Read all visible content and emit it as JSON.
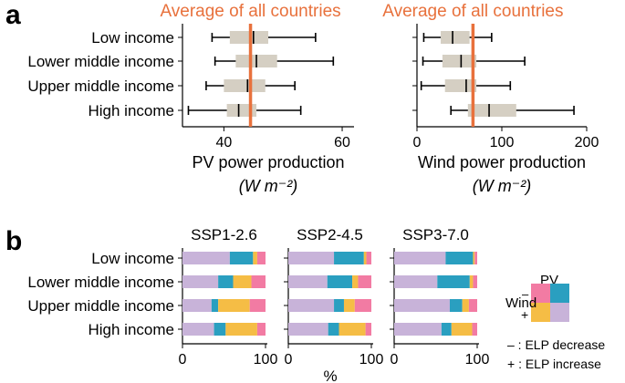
{
  "panel_a": {
    "label": "a",
    "annotation": "Average of all countries",
    "categories": [
      "Low income",
      "Lower middle income",
      "Upper middle income",
      "High income"
    ],
    "colors": {
      "box": "#d5cfc3",
      "average": "#e8713c"
    }
  },
  "panel_b": {
    "label": "b",
    "categories": [
      "Low income",
      "Lower middle income",
      "Upper middle income",
      "High income"
    ],
    "xlabel": "%",
    "legend": {
      "pv_title": "PV",
      "pv_minus": "–",
      "pv_plus": "+",
      "wind_title": "Wind",
      "wind_minus": "–",
      "wind_plus": "+",
      "note_minus": "– : ELP decrease",
      "note_plus": "+ : ELP increase"
    },
    "colors": {
      "pv_minus_wind_minus": "#f27ba3",
      "pv_plus_wind_minus": "#2a9fc0",
      "pv_minus_wind_plus": "#f5bd45",
      "pv_plus_wind_plus": "#c8b3d9"
    }
  },
  "chart_data": [
    {
      "type": "box",
      "title": "",
      "annotation": "Average of all countries",
      "xlabel": "PV power production",
      "xunit": "(W m⁻²)",
      "xlim": [
        33,
        62
      ],
      "xticks": [
        40,
        60
      ],
      "categories": [
        "Low income",
        "Lower middle income",
        "Upper middle income",
        "High income"
      ],
      "boxes": [
        {
          "whislo": 38,
          "q1": 41,
          "med": 45,
          "q3": 47.5,
          "whishi": 55.5
        },
        {
          "whislo": 38.5,
          "q1": 42,
          "med": 45.5,
          "q3": 49,
          "whishi": 58.5
        },
        {
          "whislo": 37,
          "q1": 40,
          "med": 44,
          "q3": 47,
          "whishi": 52
        },
        {
          "whislo": 34,
          "q1": 40.5,
          "med": 42.5,
          "q3": 45.5,
          "whishi": 53
        }
      ],
      "average": 44.5
    },
    {
      "type": "box",
      "title": "",
      "annotation": "Average of all countries",
      "xlabel": "Wind power production",
      "xunit": "(W m⁻²)",
      "xlim": [
        0,
        200
      ],
      "xticks": [
        0,
        100,
        200
      ],
      "categories": [
        "Low income",
        "Lower middle income",
        "Upper middle income",
        "High income"
      ],
      "boxes": [
        {
          "whislo": 8,
          "q1": 28,
          "med": 42,
          "q3": 62,
          "whishi": 88
        },
        {
          "whislo": 7,
          "q1": 30,
          "med": 52,
          "q3": 70,
          "whishi": 127
        },
        {
          "whislo": 5,
          "q1": 33,
          "med": 58,
          "q3": 70,
          "whishi": 110
        },
        {
          "whislo": 40,
          "q1": 60,
          "med": 85,
          "q3": 117,
          "whishi": 185
        }
      ],
      "average": 66
    },
    {
      "type": "bar",
      "stacked": true,
      "orientation": "horizontal",
      "title": "SSP1-2.6",
      "xlim": [
        0,
        100
      ],
      "xticks": [
        0,
        100
      ],
      "categories": [
        "Low income",
        "Lower middle income",
        "Upper middle income",
        "High income"
      ],
      "series": [
        {
          "key": "pv_plus_wind_plus",
          "values": [
            57,
            43,
            35,
            38
          ]
        },
        {
          "key": "pv_plus_wind_minus",
          "values": [
            28,
            18,
            8,
            14
          ]
        },
        {
          "key": "pv_minus_wind_plus",
          "values": [
            5,
            22,
            38,
            38
          ]
        },
        {
          "key": "pv_minus_wind_minus",
          "values": [
            10,
            17,
            19,
            10
          ]
        }
      ]
    },
    {
      "type": "bar",
      "stacked": true,
      "orientation": "horizontal",
      "title": "SSP2-4.5",
      "xlim": [
        0,
        100
      ],
      "xticks": [
        0,
        100
      ],
      "categories": [
        "Low income",
        "Lower middle income",
        "Upper middle income",
        "High income"
      ],
      "series": [
        {
          "key": "pv_plus_wind_plus",
          "values": [
            55,
            47,
            55,
            48
          ]
        },
        {
          "key": "pv_plus_wind_minus",
          "values": [
            36,
            30,
            12,
            13
          ]
        },
        {
          "key": "pv_minus_wind_plus",
          "values": [
            3,
            7,
            13,
            32
          ]
        },
        {
          "key": "pv_minus_wind_minus",
          "values": [
            6,
            16,
            20,
            7
          ]
        }
      ]
    },
    {
      "type": "bar",
      "stacked": true,
      "orientation": "horizontal",
      "title": "SSP3-7.0",
      "xlim": [
        0,
        100
      ],
      "xticks": [
        0,
        100
      ],
      "categories": [
        "Low income",
        "Lower middle income",
        "Upper middle income",
        "High income"
      ],
      "series": [
        {
          "key": "pv_plus_wind_plus",
          "values": [
            62,
            52,
            67,
            57
          ]
        },
        {
          "key": "pv_plus_wind_minus",
          "values": [
            33,
            39,
            15,
            12
          ]
        },
        {
          "key": "pv_minus_wind_plus",
          "values": [
            2,
            4,
            8,
            25
          ]
        },
        {
          "key": "pv_minus_wind_minus",
          "values": [
            3,
            5,
            10,
            6
          ]
        }
      ]
    }
  ]
}
